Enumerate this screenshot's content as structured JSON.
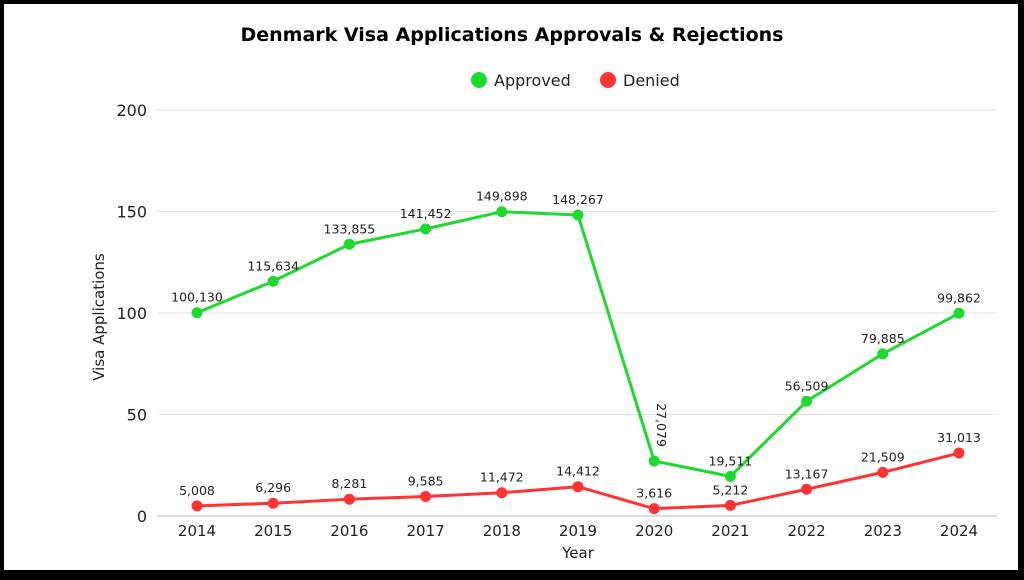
{
  "chart_data": {
    "type": "line",
    "title": "Denmark Visa Applications Approvals & Rejections",
    "xlabel": "Year",
    "ylabel": "Visa Applications",
    "categories": [
      "2014",
      "2015",
      "2016",
      "2017",
      "2018",
      "2019",
      "2020",
      "2021",
      "2022",
      "2023",
      "2024"
    ],
    "ylim": [
      0,
      200
    ],
    "yticks": [
      0,
      50,
      100,
      150,
      200
    ],
    "grid": true,
    "legend_position": "top",
    "series": [
      {
        "name": "Approved",
        "color": "#1fd92f",
        "values": [
          100130,
          115634,
          133855,
          141452,
          149898,
          148267,
          27079,
          19511,
          56509,
          79885,
          99862
        ],
        "labels": [
          "100,130",
          "115,634",
          "133,855",
          "141,452",
          "149,898",
          "148,267",
          "27,079",
          "19,511",
          "56,509",
          "79,885",
          "99,862"
        ]
      },
      {
        "name": "Denied",
        "color": "#ff3333",
        "values": [
          5008,
          6296,
          8281,
          9585,
          11472,
          14412,
          3616,
          5212,
          13167,
          21509,
          31013
        ],
        "labels": [
          "5,008",
          "6,296",
          "8,281",
          "9,585",
          "11,472",
          "14,412",
          "3,616",
          "5,212",
          "13,167",
          "21,509",
          "31,013"
        ]
      }
    ]
  }
}
